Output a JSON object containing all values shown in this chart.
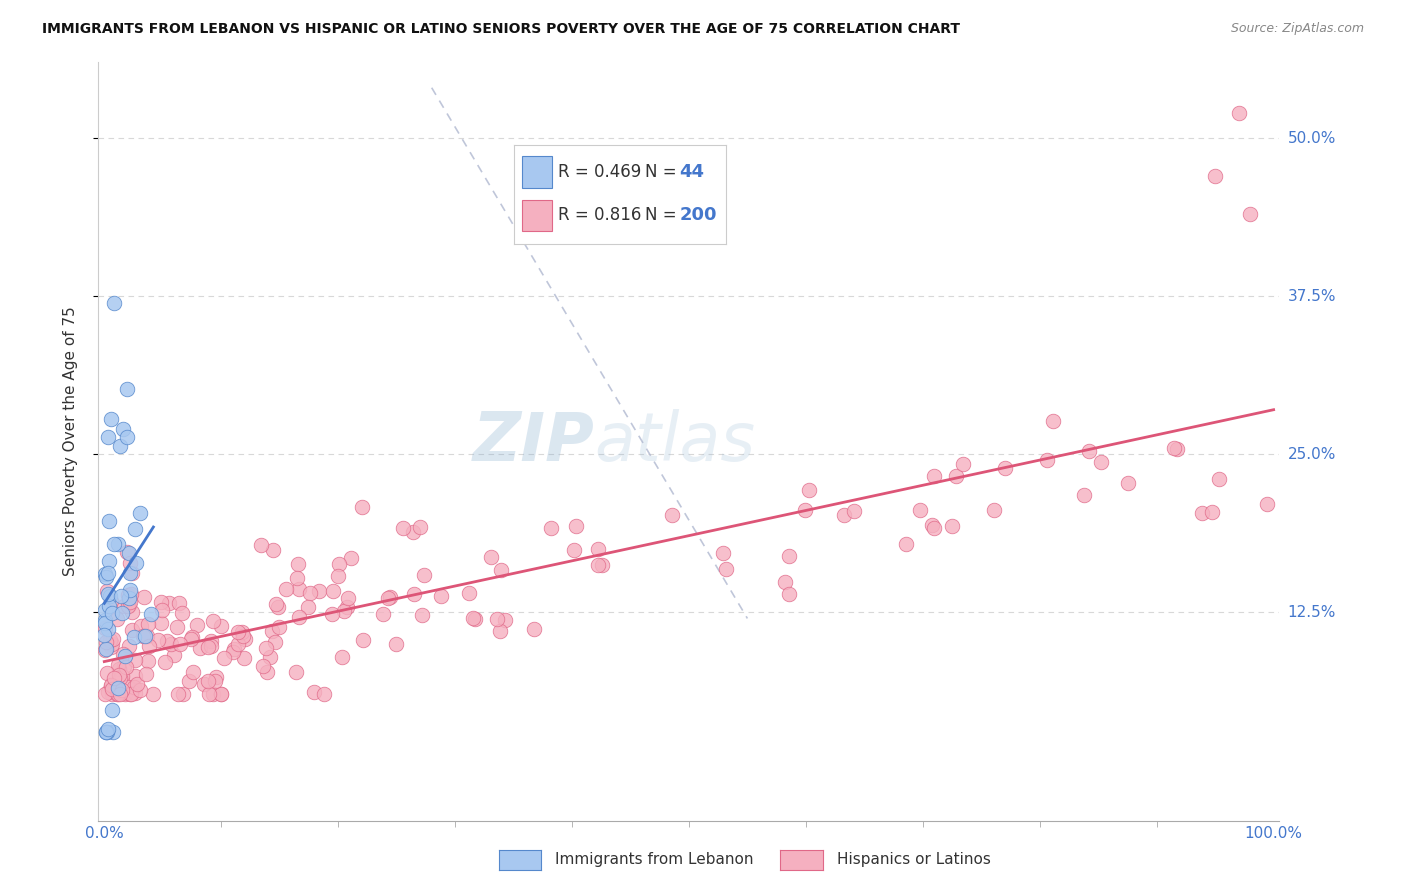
{
  "title": "IMMIGRANTS FROM LEBANON VS HISPANIC OR LATINO SENIORS POVERTY OVER THE AGE OF 75 CORRELATION CHART",
  "source": "Source: ZipAtlas.com",
  "ylabel": "Seniors Poverty Over the Age of 75",
  "ytick_labels": [
    "12.5%",
    "25.0%",
    "37.5%",
    "50.0%"
  ],
  "ytick_values": [
    0.125,
    0.25,
    0.375,
    0.5
  ],
  "xlim": [
    0.0,
    1.0
  ],
  "ylim": [
    -0.04,
    0.56
  ],
  "legend_blue_R": "0.469",
  "legend_blue_N": "44",
  "legend_pink_R": "0.816",
  "legend_pink_N": "200",
  "legend_label_blue": "Immigrants from Lebanon",
  "legend_label_pink": "Hispanics or Latinos",
  "blue_fill": "#a8c8f0",
  "pink_fill": "#f5b0c0",
  "blue_edge": "#5588cc",
  "pink_edge": "#e06888",
  "blue_line": "#4477cc",
  "pink_line": "#dd5577",
  "diag_color": "#b0b8d0",
  "watermark_color": "#c5d8ee",
  "background_color": "#ffffff",
  "grid_color": "#d8d8d8",
  "tick_label_color": "#4477cc",
  "title_color": "#111111",
  "source_color": "#888888",
  "ylabel_color": "#333333"
}
